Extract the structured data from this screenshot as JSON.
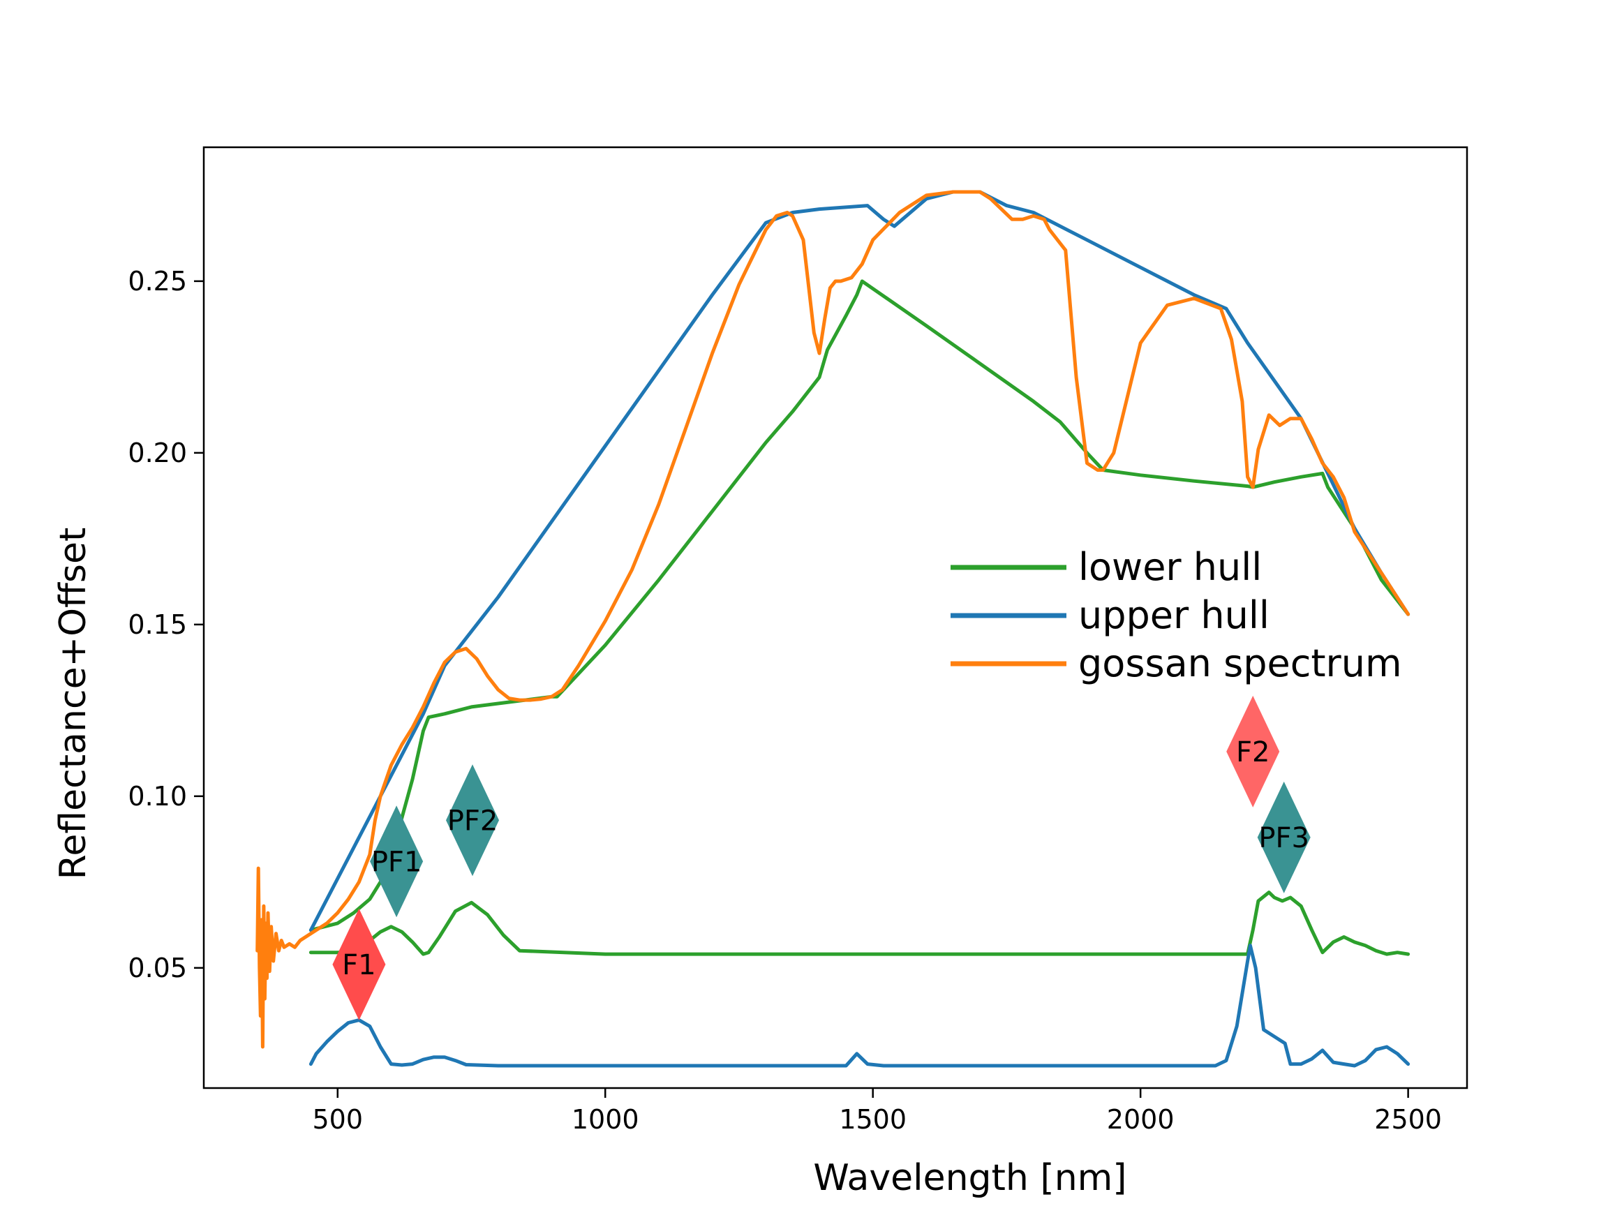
{
  "chart_data": {
    "type": "line",
    "xlabel": "Wavelength [nm]",
    "ylabel": "Reflectance+Offset",
    "xlim": [
      250,
      2610
    ],
    "ylim": [
      0.015,
      0.289
    ],
    "xticks": [
      500,
      1000,
      1500,
      2000,
      2500
    ],
    "xtick_labels": [
      "500",
      "1000",
      "1500",
      "2000",
      "2500"
    ],
    "yticks": [
      0.05,
      0.1,
      0.15,
      0.2,
      0.25
    ],
    "ytick_labels": [
      "0.05",
      "0.10",
      "0.15",
      "0.20",
      "0.25"
    ],
    "grid": false,
    "legend_position": "center-right",
    "series": [
      {
        "name": "lower hull",
        "color": "#2ca02c",
        "x": [
          450,
          500,
          530,
          560,
          580,
          610,
          640,
          660,
          670,
          700,
          750,
          800,
          850,
          900,
          910,
          1000,
          1100,
          1200,
          1300,
          1350,
          1400,
          1415,
          1450,
          1470,
          1480,
          1600,
          1700,
          1800,
          1850,
          1900,
          1930,
          2000,
          2100,
          2200,
          2210,
          2250,
          2300,
          2340,
          2350,
          2400,
          2450,
          2500
        ],
        "y": [
          0.061,
          0.063,
          0.066,
          0.07,
          0.075,
          0.088,
          0.105,
          0.119,
          0.123,
          0.124,
          0.126,
          0.127,
          0.128,
          0.129,
          0.129,
          0.144,
          0.163,
          0.183,
          0.203,
          0.212,
          0.222,
          0.23,
          0.24,
          0.246,
          0.25,
          0.237,
          0.226,
          0.215,
          0.209,
          0.2,
          0.195,
          0.1935,
          0.1918,
          0.1903,
          0.19,
          0.1915,
          0.193,
          0.194,
          0.19,
          0.178,
          0.163,
          0.153
        ]
      },
      {
        "name": "upper hull",
        "color": "#1f77b4",
        "x": [
          450,
          660,
          700,
          800,
          900,
          1000,
          1100,
          1200,
          1300,
          1350,
          1400,
          1490,
          1520,
          1540,
          1600,
          1650,
          1700,
          1750,
          1800,
          1900,
          2000,
          2100,
          2160,
          2200,
          2250,
          2300,
          2350,
          2400,
          2450,
          2500
        ],
        "y": [
          0.061,
          0.124,
          0.138,
          0.158,
          0.18,
          0.202,
          0.224,
          0.246,
          0.267,
          0.27,
          0.271,
          0.272,
          0.268,
          0.266,
          0.274,
          0.276,
          0.276,
          0.272,
          0.27,
          0.262,
          0.254,
          0.246,
          0.242,
          0.232,
          0.221,
          0.21,
          0.194,
          0.178,
          0.165,
          0.153
        ]
      },
      {
        "name": "gossan spectrum",
        "color": "#ff7f0e",
        "x": [
          350,
          352,
          354,
          356,
          358,
          360,
          362,
          364,
          366,
          368,
          370,
          373,
          376,
          380,
          385,
          390,
          395,
          400,
          410,
          420,
          430,
          450,
          480,
          500,
          520,
          540,
          560,
          570,
          580,
          600,
          620,
          640,
          660,
          680,
          700,
          720,
          740,
          760,
          780,
          800,
          820,
          840,
          860,
          880,
          900,
          920,
          950,
          1000,
          1050,
          1100,
          1150,
          1200,
          1250,
          1300,
          1320,
          1340,
          1350,
          1370,
          1390,
          1400,
          1410,
          1420,
          1430,
          1440,
          1460,
          1480,
          1500,
          1550,
          1600,
          1650,
          1700,
          1720,
          1740,
          1760,
          1780,
          1800,
          1820,
          1830,
          1840,
          1860,
          1880,
          1900,
          1920,
          1930,
          1950,
          2000,
          2050,
          2100,
          2150,
          2170,
          2190,
          2200,
          2210,
          2220,
          2240,
          2260,
          2280,
          2300,
          2320,
          2340,
          2360,
          2380,
          2400,
          2450,
          2500
        ],
        "y": [
          0.055,
          0.079,
          0.05,
          0.036,
          0.064,
          0.027,
          0.068,
          0.041,
          0.063,
          0.047,
          0.066,
          0.049,
          0.062,
          0.052,
          0.06,
          0.055,
          0.058,
          0.056,
          0.057,
          0.056,
          0.058,
          0.06,
          0.063,
          0.066,
          0.07,
          0.075,
          0.083,
          0.093,
          0.1,
          0.109,
          0.115,
          0.12,
          0.126,
          0.133,
          0.139,
          0.142,
          0.143,
          0.14,
          0.135,
          0.131,
          0.1285,
          0.128,
          0.128,
          0.1283,
          0.129,
          0.131,
          0.138,
          0.151,
          0.166,
          0.185,
          0.207,
          0.229,
          0.249,
          0.265,
          0.269,
          0.27,
          0.269,
          0.262,
          0.235,
          0.229,
          0.239,
          0.248,
          0.25,
          0.25,
          0.251,
          0.255,
          0.262,
          0.27,
          0.275,
          0.276,
          0.276,
          0.274,
          0.271,
          0.268,
          0.268,
          0.269,
          0.268,
          0.265,
          0.263,
          0.259,
          0.222,
          0.197,
          0.195,
          0.195,
          0.2,
          0.232,
          0.243,
          0.245,
          0.242,
          0.233,
          0.215,
          0.193,
          0.19,
          0.201,
          0.211,
          0.208,
          0.21,
          0.21,
          0.204,
          0.197,
          0.193,
          0.187,
          0.177,
          0.165,
          0.153
        ]
      },
      {
        "name": "",
        "color": "#2ca02c",
        "x": [
          450,
          500,
          530,
          560,
          580,
          600,
          620,
          640,
          660,
          670,
          690,
          720,
          750,
          780,
          810,
          840,
          1000,
          1200,
          1400,
          1600,
          1800,
          2000,
          2100,
          2200,
          2210,
          2220,
          2240,
          2250,
          2265,
          2280,
          2300,
          2320,
          2340,
          2360,
          2380,
          2400,
          2420,
          2440,
          2460,
          2480,
          2500
        ],
        "y": [
          0.0545,
          0.0545,
          0.0548,
          0.058,
          0.0605,
          0.062,
          0.0605,
          0.0575,
          0.054,
          0.0545,
          0.059,
          0.0665,
          0.069,
          0.0655,
          0.0595,
          0.055,
          0.054,
          0.054,
          0.054,
          0.054,
          0.054,
          0.054,
          0.054,
          0.054,
          0.061,
          0.0695,
          0.072,
          0.0705,
          0.0695,
          0.0705,
          0.068,
          0.061,
          0.0545,
          0.0575,
          0.059,
          0.0575,
          0.0565,
          0.055,
          0.054,
          0.0545,
          0.054
        ]
      },
      {
        "name": "",
        "color": "#1f77b4",
        "x": [
          450,
          460,
          480,
          500,
          520,
          540,
          560,
          580,
          600,
          620,
          640,
          660,
          680,
          700,
          720,
          740,
          800,
          1000,
          1200,
          1400,
          1450,
          1470,
          1490,
          1520,
          1600,
          1800,
          2000,
          2100,
          2140,
          2160,
          2180,
          2200,
          2205,
          2215,
          2230,
          2250,
          2270,
          2280,
          2300,
          2320,
          2340,
          2360,
          2380,
          2400,
          2420,
          2440,
          2460,
          2480,
          2500
        ],
        "y": [
          0.022,
          0.025,
          0.0285,
          0.0315,
          0.034,
          0.0348,
          0.033,
          0.027,
          0.022,
          0.0217,
          0.022,
          0.0233,
          0.024,
          0.024,
          0.023,
          0.0218,
          0.0215,
          0.0215,
          0.0215,
          0.0215,
          0.0215,
          0.025,
          0.022,
          0.0215,
          0.0215,
          0.0215,
          0.0215,
          0.0215,
          0.0215,
          0.023,
          0.033,
          0.052,
          0.0565,
          0.05,
          0.032,
          0.03,
          0.028,
          0.022,
          0.022,
          0.0235,
          0.026,
          0.0225,
          0.022,
          0.0215,
          0.023,
          0.0262,
          0.027,
          0.025,
          0.022
        ]
      }
    ],
    "markers": [
      {
        "label": "F1",
        "x": 540,
        "y": 0.051,
        "color": "#ff4c4c"
      },
      {
        "label": "F2",
        "x": 2210,
        "y": 0.113,
        "color": "#ff6666"
      },
      {
        "label": "PF1",
        "x": 610,
        "y": 0.081,
        "color": "#3a9393"
      },
      {
        "label": "PF2",
        "x": 752,
        "y": 0.093,
        "color": "#3a9393"
      },
      {
        "label": "PF3",
        "x": 2268,
        "y": 0.088,
        "color": "#3a9393"
      }
    ]
  }
}
